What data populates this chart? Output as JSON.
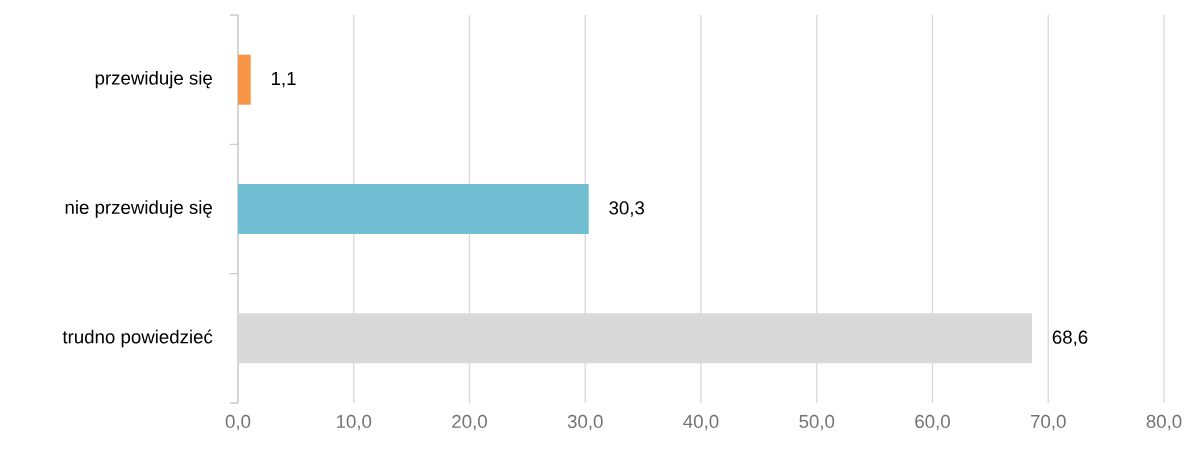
{
  "chart_data": {
    "type": "bar",
    "orientation": "horizontal",
    "categories": [
      "przewiduje się",
      "nie przewiduje się",
      "trudno powiedzieć"
    ],
    "values": [
      1.1,
      30.3,
      68.6
    ],
    "colors": [
      "#f79646",
      "#72bed3",
      "#d9d9d9"
    ],
    "value_labels": [
      "1,1",
      "30,3",
      "68,6"
    ],
    "xlim": [
      0,
      80
    ],
    "xticks": [
      {
        "value": 0,
        "label": "0,0"
      },
      {
        "value": 10,
        "label": "10,0"
      },
      {
        "value": 20,
        "label": "20,0"
      },
      {
        "value": 30,
        "label": "30,0"
      },
      {
        "value": 40,
        "label": "40,0"
      },
      {
        "value": 50,
        "label": "50,0"
      },
      {
        "value": 60,
        "label": "60,0"
      },
      {
        "value": 70,
        "label": "70,0"
      },
      {
        "value": 80,
        "label": "80,0"
      }
    ],
    "grid": "x"
  }
}
